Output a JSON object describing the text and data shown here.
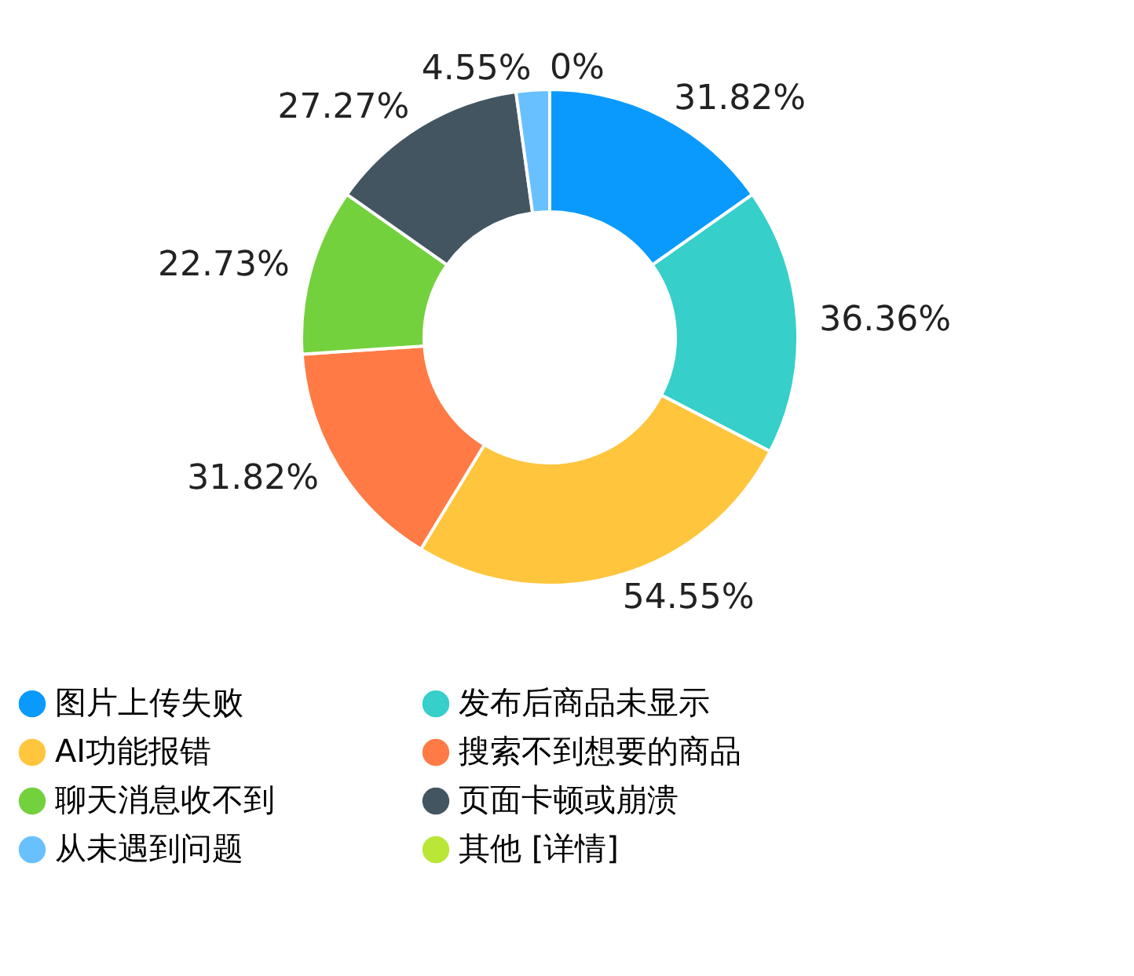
{
  "chart_data": {
    "type": "donut",
    "categories": [
      "图片上传失败",
      "发布后商品未显示",
      "AI功能报错",
      "搜索不到想要的商品",
      "聊天消息收不到",
      "页面卡顿或崩溃",
      "从未遇到问题",
      "其他 [详情]"
    ],
    "values": [
      31.82,
      36.36,
      54.55,
      31.82,
      22.73,
      27.27,
      4.55,
      0
    ],
    "value_labels": [
      "31.82%",
      "36.36%",
      "54.55%",
      "31.82%",
      "22.73%",
      "27.27%",
      "4.55%",
      "0%"
    ],
    "colors": [
      "#0a9afe",
      "#36cfc9",
      "#ffc53d",
      "#ff7a45",
      "#73d13d",
      "#435560",
      "#69c0ff",
      "#bae637"
    ],
    "legend": "bottom"
  }
}
